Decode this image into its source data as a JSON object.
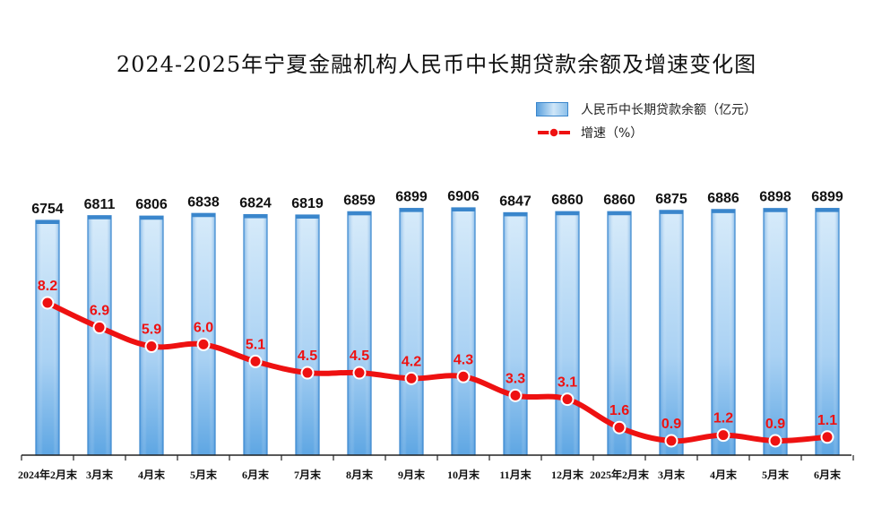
{
  "chart_data": {
    "type": "bar",
    "title": "2024-2025年宁夏金融机构人民币中长期贷款余额及增速变化图",
    "categories": [
      "2024年2月末",
      "3月末",
      "4月末",
      "5月末",
      "6月末",
      "7月末",
      "8月末",
      "9月末",
      "10月末",
      "11月末",
      "12月末",
      "2025年2月末",
      "3月末",
      "4月末",
      "5月末",
      "6月末"
    ],
    "series": [
      {
        "name": "人民币中长期贷款余额（亿元）",
        "type": "bar",
        "values": [
          6754,
          6811,
          6806,
          6838,
          6824,
          6819,
          6859,
          6899,
          6906,
          6847,
          6860,
          6860,
          6875,
          6886,
          6898,
          6899
        ]
      },
      {
        "name": "增速（%）",
        "type": "line",
        "values": [
          8.2,
          6.9,
          5.9,
          6.0,
          5.1,
          4.5,
          4.5,
          4.2,
          4.3,
          3.3,
          3.1,
          1.6,
          0.9,
          1.2,
          0.9,
          1.1
        ]
      }
    ],
    "bar_color": "#4a9be0",
    "line_color": "#ee1111",
    "legend_position": "top-right",
    "grid": false
  }
}
